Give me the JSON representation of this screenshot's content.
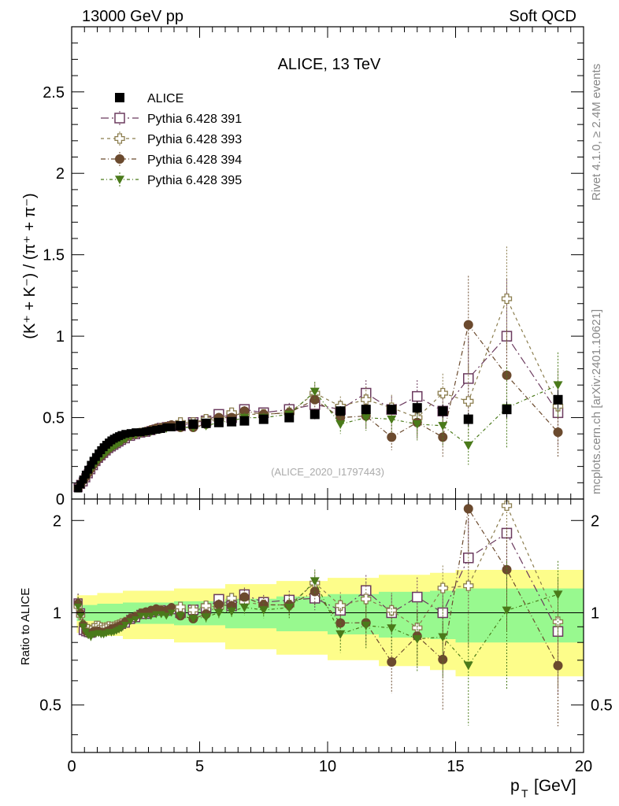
{
  "header": {
    "left": "13000 GeV pp",
    "right": "Soft QCD"
  },
  "side_labels": {
    "rivet": "Rivet 4.1.0, ≥ 2.4M events",
    "mcplots": "mcplots.cern.ch [arXiv:2401.10621]"
  },
  "chart_data": [
    {
      "type": "scatter",
      "panel": "main",
      "title": "ALICE, 13 TeV",
      "watermark": "(ALICE_2020_I1797443)",
      "ylabel": "(K⁺ + K⁻) / (π⁺ + π⁻)",
      "ylim": [
        0,
        2.9
      ],
      "xlim": [
        0,
        20
      ],
      "yticks": [
        0,
        0.5,
        1,
        1.5,
        2,
        2.5
      ],
      "ytick_labels": [
        "0",
        "0.5",
        "1",
        "1.5",
        "2",
        "2.5"
      ],
      "x": [
        0.25,
        0.35,
        0.45,
        0.55,
        0.65,
        0.75,
        0.85,
        0.95,
        1.05,
        1.15,
        1.25,
        1.35,
        1.45,
        1.55,
        1.65,
        1.75,
        1.85,
        1.95,
        2.1,
        2.3,
        2.5,
        2.7,
        2.9,
        3.1,
        3.3,
        3.5,
        3.7,
        3.9,
        4.25,
        4.75,
        5.25,
        5.75,
        6.25,
        6.75,
        7.5,
        8.5,
        9.5,
        10.5,
        11.5,
        12.5,
        13.5,
        14.5,
        15.5,
        17.0,
        19.0
      ],
      "legend": [
        "ALICE",
        "Pythia 6.428 391",
        "Pythia 6.428 393",
        "Pythia 6.428 394",
        "Pythia 6.428 395"
      ],
      "series": [
        {
          "name": "ALICE",
          "color": "#000000",
          "marker": "filled-square",
          "values": [
            0.065,
            0.09,
            0.12,
            0.15,
            0.18,
            0.21,
            0.235,
            0.258,
            0.28,
            0.3,
            0.318,
            0.333,
            0.347,
            0.36,
            0.37,
            0.378,
            0.386,
            0.393,
            0.4,
            0.405,
            0.41,
            0.41,
            0.415,
            0.42,
            0.425,
            0.43,
            0.44,
            0.44,
            0.45,
            0.46,
            0.465,
            0.47,
            0.475,
            0.48,
            0.49,
            0.5,
            0.52,
            0.54,
            0.55,
            0.55,
            0.56,
            0.54,
            0.49,
            0.55,
            0.61
          ],
          "errors": [
            0.01,
            0.012,
            0.014,
            0.016,
            0.018,
            0.019,
            0.02,
            0.02,
            0.02,
            0.02,
            0.02,
            0.02,
            0.02,
            0.02,
            0.02,
            0.02,
            0.02,
            0.02,
            0.02,
            0.02,
            0.02,
            0.02,
            0.02,
            0.02,
            0.02,
            0.02,
            0.02,
            0.02,
            0.02,
            0.02,
            0.02,
            0.02,
            0.02,
            0.02,
            0.02,
            0.02,
            0.03,
            0.03,
            0.03,
            0.03,
            0.04,
            0.04,
            0.04,
            0.05,
            0.06
          ]
        },
        {
          "name": "Pythia 6.428 391",
          "color": "#6b3a5e",
          "marker": "open-square",
          "dash": "10,4,2,4",
          "values": [
            0.07,
            0.09,
            0.105,
            0.13,
            0.155,
            0.18,
            0.205,
            0.23,
            0.25,
            0.265,
            0.28,
            0.295,
            0.31,
            0.32,
            0.33,
            0.34,
            0.35,
            0.36,
            0.37,
            0.385,
            0.395,
            0.405,
            0.41,
            0.42,
            0.43,
            0.44,
            0.445,
            0.45,
            0.45,
            0.47,
            0.48,
            0.52,
            0.5,
            0.55,
            0.53,
            0.55,
            0.58,
            0.55,
            0.65,
            0.55,
            0.63,
            0.54,
            0.74,
            1.0,
            0.53
          ],
          "errors": [
            0.005,
            0.005,
            0.005,
            0.005,
            0.005,
            0.005,
            0.005,
            0.005,
            0.005,
            0.005,
            0.005,
            0.005,
            0.005,
            0.005,
            0.005,
            0.005,
            0.005,
            0.005,
            0.005,
            0.005,
            0.005,
            0.005,
            0.005,
            0.005,
            0.005,
            0.005,
            0.005,
            0.005,
            0.01,
            0.01,
            0.02,
            0.02,
            0.02,
            0.03,
            0.03,
            0.04,
            0.05,
            0.06,
            0.08,
            0.08,
            0.1,
            0.12,
            0.25,
            0.35,
            0.2
          ]
        },
        {
          "name": "Pythia 6.428 393",
          "color": "#8b7d4e",
          "marker": "open-cross",
          "dash": "4,4",
          "values": [
            0.068,
            0.088,
            0.11,
            0.135,
            0.16,
            0.185,
            0.21,
            0.235,
            0.255,
            0.27,
            0.285,
            0.3,
            0.315,
            0.325,
            0.335,
            0.345,
            0.355,
            0.365,
            0.375,
            0.39,
            0.4,
            0.41,
            0.415,
            0.425,
            0.43,
            0.44,
            0.445,
            0.45,
            0.47,
            0.47,
            0.49,
            0.49,
            0.53,
            0.52,
            0.52,
            0.53,
            0.65,
            0.57,
            0.61,
            0.56,
            0.5,
            0.65,
            0.6,
            1.23,
            0.57
          ],
          "errors": [
            0.005,
            0.005,
            0.005,
            0.005,
            0.005,
            0.005,
            0.005,
            0.005,
            0.005,
            0.005,
            0.005,
            0.005,
            0.005,
            0.005,
            0.005,
            0.005,
            0.005,
            0.005,
            0.005,
            0.005,
            0.005,
            0.005,
            0.005,
            0.005,
            0.005,
            0.005,
            0.005,
            0.005,
            0.01,
            0.01,
            0.02,
            0.02,
            0.02,
            0.03,
            0.03,
            0.04,
            0.06,
            0.06,
            0.08,
            0.08,
            0.1,
            0.12,
            0.22,
            0.32,
            0.22
          ]
        },
        {
          "name": "Pythia 6.428 394",
          "color": "#6b4a2e",
          "marker": "filled-circle",
          "dash": "6,3,1,3",
          "values": [
            0.07,
            0.09,
            0.11,
            0.13,
            0.155,
            0.18,
            0.205,
            0.225,
            0.245,
            0.26,
            0.275,
            0.29,
            0.305,
            0.32,
            0.33,
            0.34,
            0.35,
            0.36,
            0.375,
            0.39,
            0.4,
            0.41,
            0.42,
            0.43,
            0.44,
            0.44,
            0.45,
            0.46,
            0.44,
            0.44,
            0.46,
            0.5,
            0.5,
            0.54,
            0.52,
            0.53,
            0.61,
            0.5,
            0.51,
            0.38,
            0.47,
            0.38,
            1.07,
            0.76,
            0.41
          ],
          "errors": [
            0.005,
            0.005,
            0.005,
            0.005,
            0.005,
            0.005,
            0.005,
            0.005,
            0.005,
            0.005,
            0.005,
            0.005,
            0.005,
            0.005,
            0.005,
            0.005,
            0.005,
            0.005,
            0.005,
            0.005,
            0.005,
            0.005,
            0.005,
            0.005,
            0.005,
            0.005,
            0.005,
            0.005,
            0.01,
            0.01,
            0.02,
            0.02,
            0.02,
            0.03,
            0.03,
            0.04,
            0.06,
            0.06,
            0.08,
            0.08,
            0.1,
            0.12,
            0.3,
            0.28,
            0.15
          ]
        },
        {
          "name": "Pythia 6.428 395",
          "color": "#4a7a1a",
          "marker": "filled-triangle-down",
          "dash": "4,3,1,3",
          "values": [
            0.068,
            0.088,
            0.108,
            0.13,
            0.152,
            0.175,
            0.2,
            0.22,
            0.24,
            0.255,
            0.27,
            0.285,
            0.3,
            0.31,
            0.32,
            0.33,
            0.34,
            0.35,
            0.365,
            0.38,
            0.39,
            0.4,
            0.405,
            0.41,
            0.42,
            0.425,
            0.43,
            0.44,
            0.44,
            0.44,
            0.45,
            0.47,
            0.48,
            0.5,
            0.5,
            0.52,
            0.66,
            0.46,
            0.5,
            0.49,
            0.46,
            0.45,
            0.33,
            0.56,
            0.7
          ],
          "errors": [
            0.005,
            0.005,
            0.005,
            0.005,
            0.005,
            0.005,
            0.005,
            0.005,
            0.005,
            0.005,
            0.005,
            0.005,
            0.005,
            0.005,
            0.005,
            0.005,
            0.005,
            0.005,
            0.005,
            0.005,
            0.005,
            0.005,
            0.005,
            0.005,
            0.005,
            0.005,
            0.005,
            0.005,
            0.01,
            0.01,
            0.02,
            0.02,
            0.02,
            0.03,
            0.03,
            0.04,
            0.06,
            0.06,
            0.08,
            0.08,
            0.1,
            0.12,
            0.12,
            0.25,
            0.2
          ]
        }
      ]
    },
    {
      "type": "scatter",
      "panel": "ratio",
      "ylabel": "Ratio to ALICE",
      "ylim": [
        0.35,
        2.35
      ],
      "xlim": [
        0,
        20
      ],
      "xlabel": "p",
      "xlabel_sub": "T",
      "xlabel_unit": "[GeV]",
      "xticks": [
        0,
        5,
        10,
        15,
        20
      ],
      "xtick_labels": [
        "0",
        "5",
        "10",
        "15",
        "20"
      ],
      "yticks": [
        0.5,
        1,
        2
      ],
      "ytick_labels": [
        "0.5",
        "1",
        "2"
      ],
      "bands": {
        "inner_color": "#98f98f",
        "outer_color": "#fdfd8a",
        "x": [
          0.2,
          1,
          2,
          4,
          6,
          8,
          10,
          12,
          14,
          15,
          20
        ],
        "inner_half_width": [
          0.06,
          0.07,
          0.08,
          0.09,
          0.11,
          0.13,
          0.15,
          0.17,
          0.18,
          0.2,
          0.2
        ],
        "outer_half_width": [
          0.14,
          0.16,
          0.18,
          0.2,
          0.24,
          0.27,
          0.3,
          0.33,
          0.35,
          0.38,
          0.38
        ]
      }
    }
  ]
}
